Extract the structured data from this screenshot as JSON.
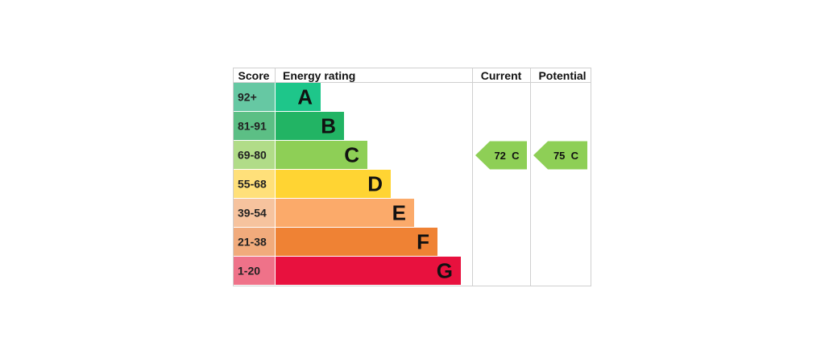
{
  "chart_data": {
    "type": "bar",
    "headers": {
      "score": "Score",
      "rating": "Energy rating",
      "current": "Current",
      "potential": "Potential"
    },
    "bands": [
      {
        "range": "92+",
        "letter": "A",
        "color": "#1ec68a",
        "score_color": "#66c8a3"
      },
      {
        "range": "81-91",
        "letter": "B",
        "color": "#22b464",
        "score_color": "#5cbf85"
      },
      {
        "range": "69-80",
        "letter": "C",
        "color": "#8ecf56",
        "score_color": "#b1dc88"
      },
      {
        "range": "55-68",
        "letter": "D",
        "color": "#ffd433",
        "score_color": "#ffe07a"
      },
      {
        "range": "39-54",
        "letter": "E",
        "color": "#fbaa6a",
        "score_color": "#f6c39e"
      },
      {
        "range": "21-38",
        "letter": "F",
        "color": "#ef8234",
        "score_color": "#f1ab7c"
      },
      {
        "range": "1-20",
        "letter": "G",
        "color": "#e8113e",
        "score_color": "#ef7289"
      }
    ],
    "current": {
      "value": 72,
      "band": "C",
      "label": "72  C",
      "color": "#8ecf56"
    },
    "potential": {
      "value": 75,
      "band": "C",
      "label": "75  C",
      "color": "#8ecf56"
    }
  }
}
